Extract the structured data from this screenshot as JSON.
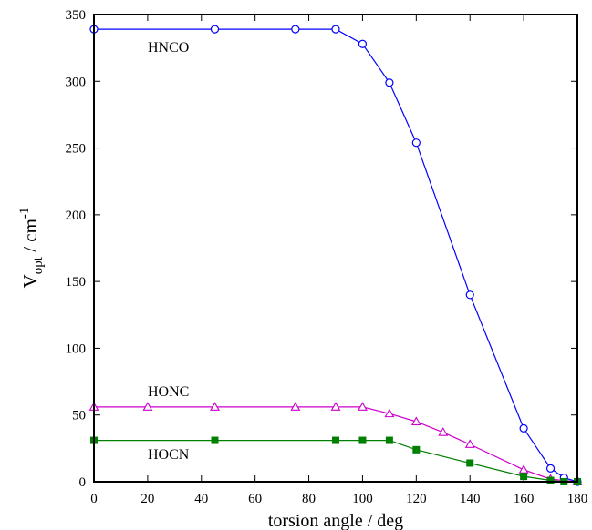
{
  "chart_data": {
    "type": "line",
    "xlabel": "torsion angle / deg",
    "ylabel": {
      "main": "V",
      "sub": "opt",
      "mid": " / cm",
      "sup": "-1"
    },
    "xlim": [
      0,
      180
    ],
    "ylim": [
      0,
      350
    ],
    "xticks": [
      0,
      20,
      40,
      60,
      80,
      100,
      120,
      140,
      160,
      180
    ],
    "yticks": [
      0,
      50,
      100,
      150,
      200,
      250,
      300,
      350
    ],
    "grid": false,
    "series": [
      {
        "name": "HNCO",
        "color": "#0000ff",
        "marker": "circle-open",
        "x": [
          0,
          45,
          75,
          90,
          100,
          110,
          120,
          140,
          160,
          170,
          175,
          180
        ],
        "y": [
          339,
          339,
          339,
          339,
          328,
          299,
          254,
          140,
          40,
          10,
          3,
          0
        ]
      },
      {
        "name": "HONC",
        "color": "#cc00cc",
        "marker": "triangle-open",
        "x": [
          0,
          20,
          45,
          75,
          90,
          100,
          110,
          120,
          130,
          140,
          160,
          170,
          180
        ],
        "y": [
          56,
          56,
          56,
          56,
          56,
          56,
          51,
          45,
          37,
          28,
          9,
          2,
          0
        ]
      },
      {
        "name": "HOCN",
        "color": "#008000",
        "marker": "square-filled",
        "x": [
          0,
          45,
          90,
          100,
          110,
          120,
          140,
          160,
          170,
          175,
          180
        ],
        "y": [
          31,
          31,
          31,
          31,
          31,
          24,
          14,
          4,
          1,
          0,
          0
        ]
      }
    ]
  }
}
